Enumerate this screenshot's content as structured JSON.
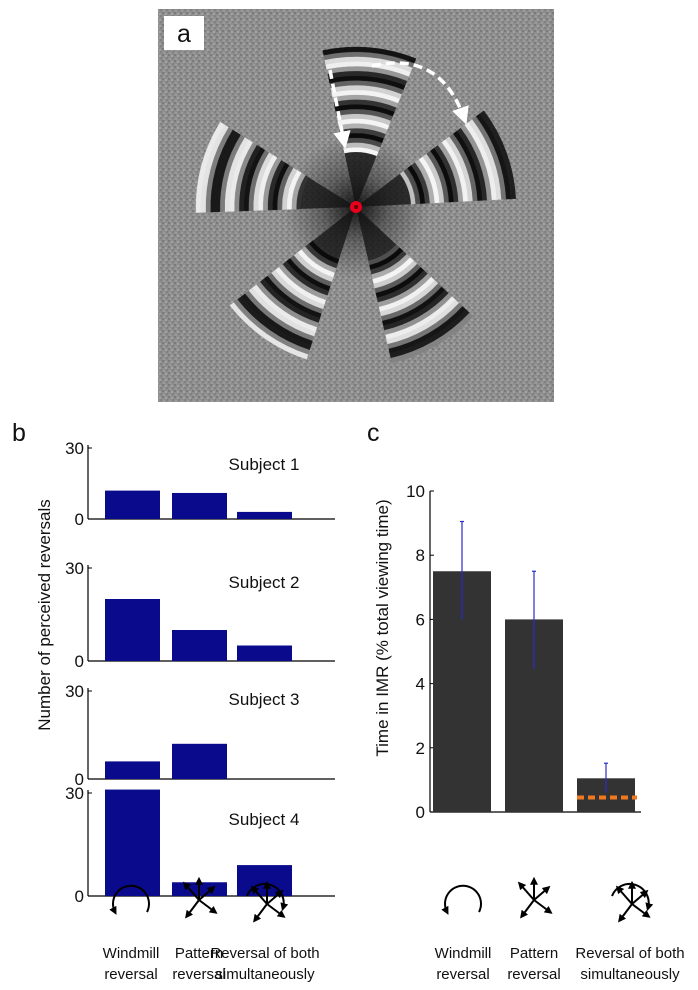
{
  "panels": {
    "a": {
      "label": "a"
    },
    "b": {
      "label": "b"
    },
    "c": {
      "label": "c"
    }
  },
  "stimulus": {
    "fixation_color": "#e8001c",
    "arrow_color": "#ffffff"
  },
  "colors": {
    "panel_b_bar": "#0a0a8c",
    "panel_c_bar": "#333333",
    "error_bar": "#2a2ad0",
    "chance_line": "#f07820"
  },
  "categories": [
    {
      "name": "Windmill reversal",
      "line1": "Windmill",
      "line2": "reversal",
      "icon": "windmill-reversal-icon"
    },
    {
      "name": "Pattern reversal",
      "line1": "Pattern",
      "line2": "reversal",
      "icon": "pattern-reversal-icon"
    },
    {
      "name": "Reversal of both simultaneously",
      "line1": "Reversal of both",
      "line2": "simultaneously",
      "icon": "both-reversal-icon"
    }
  ],
  "chart_data": [
    {
      "type": "bar",
      "ylabel": "Number of perceived reversals",
      "ylim": [
        0,
        30
      ],
      "yticks": [
        0,
        30
      ],
      "categories": [
        "Windmill reversal",
        "Pattern reversal",
        "Reversal of both simultaneously"
      ],
      "series": [
        {
          "name": "Subject 1",
          "values": [
            12,
            11,
            3
          ]
        },
        {
          "name": "Subject 2",
          "values": [
            20,
            10,
            5
          ]
        },
        {
          "name": "Subject 3",
          "values": [
            6,
            12,
            0
          ]
        },
        {
          "name": "Subject 4",
          "values": [
            31,
            4,
            9
          ]
        }
      ]
    },
    {
      "type": "bar",
      "ylabel": "Time in IMR (% total viewing time)",
      "ylim": [
        0,
        10
      ],
      "yticks": [
        0,
        2,
        4,
        6,
        8,
        10
      ],
      "categories": [
        "Windmill reversal",
        "Pattern reversal",
        "Reversal of both simultaneously"
      ],
      "values": [
        7.5,
        6.0,
        1.05
      ],
      "error_low": [
        6.0,
        4.45,
        0.6
      ],
      "error_high": [
        9.05,
        7.5,
        1.52
      ],
      "reference_line": 0.45
    }
  ]
}
